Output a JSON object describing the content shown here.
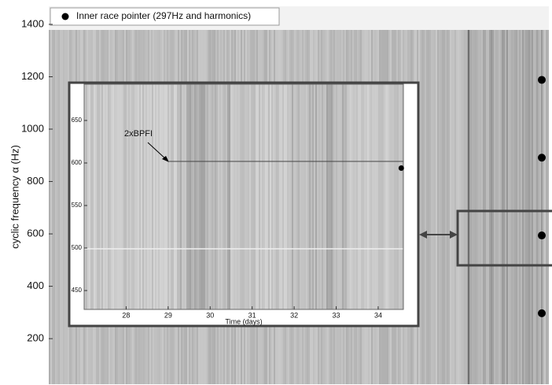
{
  "chart_data": [
    {
      "type": "scatter",
      "ylabel": "cyclic frequency α (Hz)",
      "ylim": [
        26,
        1469
      ],
      "yticks": [
        200,
        400,
        600,
        800,
        1000,
        1200,
        1400
      ],
      "legend": "upper left",
      "series": [
        {
          "name": "Inner race pointer (297Hz and harmonics)",
          "color": "#000000",
          "values": [
            297,
            594,
            891,
            1188
          ]
        }
      ]
    },
    {
      "type": "scatter",
      "xlabel": "Time (days)",
      "annotation": "2xBPFI",
      "xlim": [
        27.0,
        34.6
      ],
      "ylim": [
        427.8,
        692.6
      ],
      "xticks": [
        28,
        29,
        30,
        31,
        32,
        33,
        34
      ],
      "yticks": [
        450,
        500,
        550,
        600,
        650
      ],
      "series": [
        {
          "color": "#000000",
          "x": [
            34.55
          ],
          "y": [
            594
          ]
        }
      ]
    }
  ]
}
